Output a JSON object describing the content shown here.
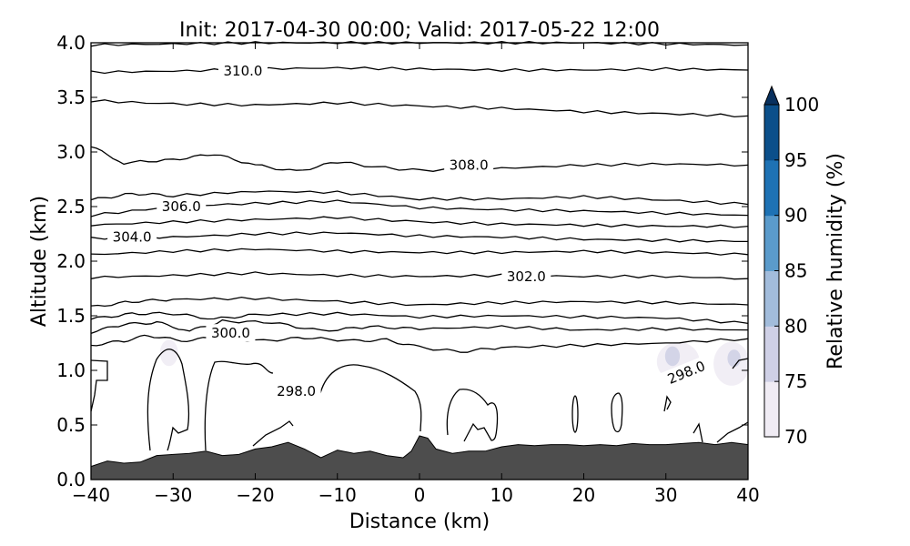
{
  "chart_data": {
    "type": "contour",
    "title": "Init: 2017-04-30 00:00; Valid: 2017-05-22 12:00",
    "xlabel": "Distance (km)",
    "ylabel": "Altitude (km)",
    "xlim": [
      -40,
      40
    ],
    "ylim": [
      0.0,
      4.0
    ],
    "x_ticks": [
      -40,
      -30,
      -20,
      -10,
      0,
      10,
      20,
      30,
      40
    ],
    "x_tick_labels": [
      "−40",
      "−30",
      "−20",
      "−10",
      "0",
      "10",
      "20",
      "30",
      "40"
    ],
    "y_ticks": [
      0.0,
      0.5,
      1.0,
      1.5,
      2.0,
      2.5,
      3.0,
      3.5,
      4.0
    ],
    "y_tick_labels": [
      "0.0",
      "0.5",
      "1.0",
      "1.5",
      "2.0",
      "2.5",
      "3.0",
      "3.5",
      "4.0"
    ],
    "grid": false,
    "contour_labels": [
      {
        "text": "310.0",
        "x": -21.5,
        "y": 3.74
      },
      {
        "text": "308.0",
        "x": 6.0,
        "y": 2.88
      },
      {
        "text": "306.0",
        "x": -29.0,
        "y": 2.5
      },
      {
        "text": "304.0",
        "x": -35.0,
        "y": 2.22
      },
      {
        "text": "302.0",
        "x": 13.0,
        "y": 1.86
      },
      {
        "text": "300.0",
        "x": -23.0,
        "y": 1.34
      },
      {
        "text": "298.0",
        "x": -15.0,
        "y": 0.81
      },
      {
        "text": "298.0",
        "x": 32.5,
        "y": 0.98
      }
    ],
    "isentropes_km": [
      [
        [
          -40,
          3.98
        ],
        [
          -30,
          3.99
        ],
        [
          -20,
          4.0
        ],
        [
          -10,
          4.0
        ],
        [
          0,
          4.0
        ],
        [
          10,
          4.0
        ],
        [
          20,
          4.0
        ],
        [
          30,
          3.99
        ],
        [
          40,
          3.98
        ]
      ],
      [
        [
          -40,
          3.73
        ],
        [
          -30,
          3.74
        ],
        [
          -20,
          3.76
        ],
        [
          -10,
          3.77
        ],
        [
          0,
          3.76
        ],
        [
          10,
          3.75
        ],
        [
          20,
          3.75
        ],
        [
          30,
          3.76
        ],
        [
          40,
          3.75
        ]
      ],
      [
        [
          -40,
          3.47
        ],
        [
          -30,
          3.44
        ],
        [
          -20,
          3.43
        ],
        [
          -10,
          3.45
        ],
        [
          0,
          3.42
        ],
        [
          10,
          3.4
        ],
        [
          20,
          3.37
        ],
        [
          30,
          3.35
        ],
        [
          40,
          3.33
        ]
      ],
      [
        [
          -40,
          3.05
        ],
        [
          -36,
          2.9
        ],
        [
          -30,
          2.93
        ],
        [
          -25,
          2.98
        ],
        [
          -20,
          2.88
        ],
        [
          -15,
          2.82
        ],
        [
          -10,
          2.91
        ],
        [
          -5,
          2.86
        ],
        [
          0,
          2.83
        ],
        [
          10,
          2.85
        ],
        [
          20,
          2.88
        ],
        [
          30,
          2.89
        ],
        [
          40,
          2.88
        ]
      ],
      [
        [
          -40,
          2.56
        ],
        [
          -35,
          2.62
        ],
        [
          -30,
          2.6
        ],
        [
          -20,
          2.64
        ],
        [
          -10,
          2.63
        ],
        [
          0,
          2.57
        ],
        [
          10,
          2.57
        ],
        [
          20,
          2.59
        ],
        [
          30,
          2.56
        ],
        [
          40,
          2.52
        ]
      ],
      [
        [
          -40,
          2.42
        ],
        [
          -30,
          2.5
        ],
        [
          -20,
          2.53
        ],
        [
          -10,
          2.55
        ],
        [
          0,
          2.49
        ],
        [
          10,
          2.47
        ],
        [
          20,
          2.46
        ],
        [
          30,
          2.44
        ],
        [
          40,
          2.42
        ]
      ],
      [
        [
          -40,
          2.33
        ],
        [
          -30,
          2.36
        ],
        [
          -20,
          2.38
        ],
        [
          -10,
          2.4
        ],
        [
          0,
          2.36
        ],
        [
          10,
          2.34
        ],
        [
          20,
          2.33
        ],
        [
          30,
          2.32
        ],
        [
          40,
          2.32
        ]
      ],
      [
        [
          -40,
          2.21
        ],
        [
          -30,
          2.22
        ],
        [
          -20,
          2.25
        ],
        [
          -10,
          2.26
        ],
        [
          0,
          2.23
        ],
        [
          10,
          2.22
        ],
        [
          20,
          2.2
        ],
        [
          30,
          2.19
        ],
        [
          40,
          2.18
        ]
      ],
      [
        [
          -40,
          2.06
        ],
        [
          -30,
          2.09
        ],
        [
          -20,
          2.11
        ],
        [
          -10,
          2.09
        ],
        [
          0,
          2.08
        ],
        [
          10,
          2.08
        ],
        [
          20,
          2.09
        ],
        [
          30,
          2.08
        ],
        [
          40,
          2.06
        ]
      ],
      [
        [
          -40,
          1.85
        ],
        [
          -30,
          1.87
        ],
        [
          -20,
          1.89
        ],
        [
          -10,
          1.87
        ],
        [
          0,
          1.86
        ],
        [
          10,
          1.87
        ],
        [
          20,
          1.86
        ],
        [
          30,
          1.86
        ],
        [
          40,
          1.84
        ]
      ],
      [
        [
          -40,
          1.58
        ],
        [
          -35,
          1.63
        ],
        [
          -30,
          1.65
        ],
        [
          -20,
          1.66
        ],
        [
          -10,
          1.63
        ],
        [
          0,
          1.6
        ],
        [
          10,
          1.62
        ],
        [
          20,
          1.63
        ],
        [
          30,
          1.62
        ],
        [
          40,
          1.6
        ]
      ],
      [
        [
          -40,
          1.47
        ],
        [
          -35,
          1.52
        ],
        [
          -30,
          1.52
        ],
        [
          -25,
          1.47
        ],
        [
          -20,
          1.51
        ],
        [
          -10,
          1.52
        ],
        [
          0,
          1.49
        ],
        [
          10,
          1.5
        ],
        [
          20,
          1.49
        ],
        [
          30,
          1.48
        ],
        [
          40,
          1.43
        ]
      ],
      [
        [
          -40,
          1.35
        ],
        [
          -36,
          1.42
        ],
        [
          -32,
          1.44
        ],
        [
          -28,
          1.36
        ],
        [
          -24,
          1.45
        ],
        [
          -18,
          1.44
        ],
        [
          -12,
          1.36
        ],
        [
          -6,
          1.4
        ],
        [
          0,
          1.38
        ],
        [
          10,
          1.4
        ],
        [
          20,
          1.37
        ],
        [
          30,
          1.38
        ],
        [
          40,
          1.37
        ]
      ],
      [
        [
          -40,
          1.23
        ],
        [
          -36,
          1.27
        ],
        [
          -33,
          1.32
        ],
        [
          -29,
          1.27
        ],
        [
          -25,
          1.3
        ],
        [
          -19,
          1.27
        ],
        [
          -14,
          1.3
        ],
        [
          -8,
          1.27
        ],
        [
          -4,
          1.28
        ],
        [
          0,
          1.21
        ],
        [
          5,
          1.17
        ],
        [
          10,
          1.21
        ],
        [
          20,
          1.23
        ],
        [
          30,
          1.25
        ],
        [
          40,
          1.29
        ]
      ]
    ],
    "terrain_km": [
      [
        -40,
        0.12
      ],
      [
        -38,
        0.17
      ],
      [
        -36,
        0.15
      ],
      [
        -34,
        0.16
      ],
      [
        -32,
        0.22
      ],
      [
        -30,
        0.23
      ],
      [
        -28,
        0.24
      ],
      [
        -26,
        0.26
      ],
      [
        -24,
        0.22
      ],
      [
        -22,
        0.23
      ],
      [
        -20,
        0.28
      ],
      [
        -18,
        0.3
      ],
      [
        -16,
        0.34
      ],
      [
        -14,
        0.28
      ],
      [
        -12,
        0.2
      ],
      [
        -10,
        0.27
      ],
      [
        -8,
        0.24
      ],
      [
        -6,
        0.26
      ],
      [
        -4,
        0.22
      ],
      [
        -2,
        0.2
      ],
      [
        -1,
        0.26
      ],
      [
        0,
        0.4
      ],
      [
        1,
        0.38
      ],
      [
        2,
        0.28
      ],
      [
        4,
        0.24
      ],
      [
        6,
        0.26
      ],
      [
        8,
        0.26
      ],
      [
        10,
        0.3
      ],
      [
        12,
        0.32
      ],
      [
        14,
        0.31
      ],
      [
        16,
        0.32
      ],
      [
        18,
        0.32
      ],
      [
        20,
        0.31
      ],
      [
        22,
        0.32
      ],
      [
        24,
        0.31
      ],
      [
        26,
        0.33
      ],
      [
        28,
        0.32
      ],
      [
        30,
        0.32
      ],
      [
        32,
        0.33
      ],
      [
        34,
        0.34
      ],
      [
        36,
        0.32
      ],
      [
        38,
        0.34
      ],
      [
        40,
        0.32
      ]
    ],
    "humidity_patches": [
      {
        "x": -30.5,
        "y": 1.16,
        "rx": 1.1,
        "ry": 0.12,
        "rh": 72
      },
      {
        "x": 31.5,
        "y": 1.08,
        "rx": 2.6,
        "ry": 0.18,
        "rh": 73
      },
      {
        "x": 30.8,
        "y": 1.13,
        "rx": 0.9,
        "ry": 0.09,
        "rh": 76
      },
      {
        "x": 38.0,
        "y": 1.06,
        "rx": 2.2,
        "ry": 0.2,
        "rh": 73
      },
      {
        "x": 38.3,
        "y": 1.11,
        "rx": 0.8,
        "ry": 0.08,
        "rh": 76
      }
    ],
    "colorbar": {
      "label": "Relative humidity (%)",
      "range": [
        70,
        100
      ],
      "ticks": [
        "70",
        "75",
        "80",
        "85",
        "90",
        "95",
        "100"
      ],
      "colors": [
        "#f0ecf4",
        "#cfd0e6",
        "#a2bcdb",
        "#5b9bcb",
        "#1e72b4",
        "#0b4f8a"
      ],
      "extend_color": "#08305e"
    }
  }
}
